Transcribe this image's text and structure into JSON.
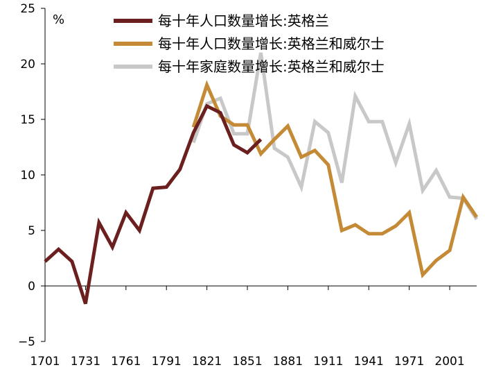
{
  "chart_data": {
    "type": "line",
    "title": "",
    "xlabel": "",
    "ylabel": "",
    "unit_label": "%",
    "xlim": [
      1701,
      2021
    ],
    "ylim": [
      -5,
      25
    ],
    "y_ticks": [
      -5,
      0,
      5,
      10,
      15,
      20,
      25
    ],
    "x_ticks": [
      1701,
      1731,
      1761,
      1791,
      1821,
      1851,
      1881,
      1911,
      1941,
      1971,
      2001
    ],
    "grid": false,
    "legend_position": "top-right",
    "series": [
      {
        "name": "每十年人口数量增长:英格兰",
        "color": "#6b1f1f",
        "x": [
          1701,
          1711,
          1721,
          1731,
          1741,
          1751,
          1761,
          1771,
          1781,
          1791,
          1801,
          1811,
          1821,
          1831,
          1841,
          1851,
          1861
        ],
        "y": [
          2.2,
          3.3,
          2.2,
          -1.6,
          5.7,
          3.5,
          6.6,
          5.0,
          8.8,
          8.9,
          10.5,
          13.8,
          16.2,
          15.6,
          12.7,
          12.0,
          13.2
        ]
      },
      {
        "name": "每十年人口数量增长:英格兰和威尔士",
        "color": "#c48a35",
        "x": [
          1811,
          1821,
          1831,
          1841,
          1851,
          1861,
          1871,
          1881,
          1891,
          1901,
          1911,
          1921,
          1931,
          1941,
          1951,
          1961,
          1971,
          1981,
          1991,
          2001,
          2011,
          2021
        ],
        "y": [
          14.3,
          18.1,
          15.3,
          14.5,
          14.5,
          11.9,
          13.2,
          14.4,
          11.6,
          12.2,
          10.9,
          5.0,
          5.5,
          4.7,
          4.7,
          5.4,
          6.6,
          1.0,
          2.3,
          3.2,
          8.0,
          6.2
        ]
      },
      {
        "name": "每十年家庭数量增长:英格兰和威尔士",
        "color": "#c8c8c8",
        "x": [
          1811,
          1821,
          1831,
          1841,
          1851,
          1861,
          1871,
          1881,
          1891,
          1901,
          1911,
          1921,
          1931,
          1941,
          1951,
          1961,
          1971,
          1981,
          1991,
          2001,
          2011,
          2021
        ],
        "y": [
          12.9,
          16.4,
          16.9,
          13.7,
          13.7,
          21.0,
          12.4,
          11.6,
          8.9,
          14.8,
          13.8,
          9.3,
          17.1,
          14.8,
          14.8,
          11.1,
          14.6,
          8.6,
          10.4,
          8.0,
          7.9,
          6.0
        ]
      }
    ]
  }
}
